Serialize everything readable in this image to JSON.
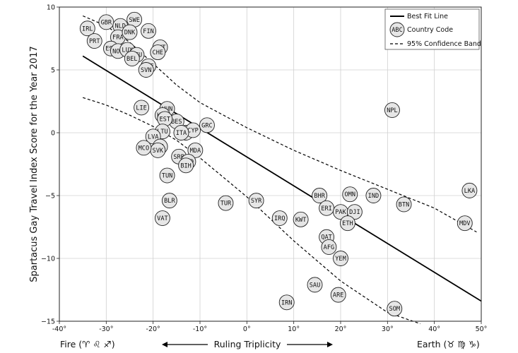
{
  "chart_data": {
    "type": "scatter",
    "ylabel": "Spartacus Gay Travel Index Score for the Year 2017",
    "xlim": [
      -40,
      50
    ],
    "ylim": [
      -15,
      10
    ],
    "x_ticks": [
      -40,
      -30,
      -20,
      -10,
      0,
      10,
      20,
      30,
      40,
      50
    ],
    "x_tick_labels": [
      "-40°",
      "-30°",
      "-20°",
      "-10°",
      "0°",
      "10°",
      "20°",
      "30°",
      "40°",
      "50°"
    ],
    "y_ticks": [
      -15,
      -10,
      -5,
      0,
      5,
      10
    ],
    "y_tick_labels": [
      "−15",
      "−10",
      "−5",
      "0",
      "5",
      "10"
    ],
    "grid": true,
    "legend": {
      "placement": "top-right",
      "entries": [
        {
          "kind": "line",
          "label": "Best Fit Line"
        },
        {
          "kind": "marker",
          "marker_text": "ABC",
          "label": "Country Code"
        },
        {
          "kind": "dashed",
          "label": "95% Confidence Band"
        }
      ]
    },
    "bottom_labels": {
      "left": "Fire (♈ ♌ ♐)",
      "center": "Ruling Triplicity",
      "right": "Earth (♉ ♍ ♑)"
    },
    "best_fit": {
      "x": [
        -35,
        50
      ],
      "y": [
        6.1,
        -13.4
      ]
    },
    "confidence_band": {
      "upper": [
        [
          -35,
          9.3
        ],
        [
          -30,
          8.5
        ],
        [
          -25,
          7.2
        ],
        [
          -20,
          5.5
        ],
        [
          -15,
          3.8
        ],
        [
          -10,
          2.4
        ],
        [
          0,
          0.4
        ],
        [
          10,
          -1.4
        ],
        [
          20,
          -3.0
        ],
        [
          30,
          -4.5
        ],
        [
          40,
          -6.0
        ],
        [
          49,
          -7.9
        ]
      ],
      "lower": [
        [
          -35,
          2.8
        ],
        [
          -30,
          2.2
        ],
        [
          -25,
          1.4
        ],
        [
          -20,
          0.5
        ],
        [
          -15,
          -0.6
        ],
        [
          -10,
          -2.0
        ],
        [
          0,
          -5.1
        ],
        [
          10,
          -8.6
        ],
        [
          20,
          -11.8
        ],
        [
          30,
          -14.3
        ],
        [
          37,
          -15.2
        ]
      ]
    },
    "points": [
      {
        "code": "IRL",
        "x": -34,
        "y": 8.3
      },
      {
        "code": "GBR",
        "x": -30,
        "y": 8.8
      },
      {
        "code": "NLD",
        "x": -27,
        "y": 8.5
      },
      {
        "code": "SWE",
        "x": -24,
        "y": 9.0
      },
      {
        "code": "PRT",
        "x": -32.5,
        "y": 7.3
      },
      {
        "code": "FRA",
        "x": -27.5,
        "y": 7.6
      },
      {
        "code": "DNK",
        "x": -25,
        "y": 8.0
      },
      {
        "code": "FIN",
        "x": -21,
        "y": 8.1
      },
      {
        "code": "ESP",
        "x": -29,
        "y": 6.7
      },
      {
        "code": "NOR",
        "x": -27.5,
        "y": 6.5
      },
      {
        "code": "LUX",
        "x": -25.5,
        "y": 6.6
      },
      {
        "code": "DEU",
        "x": -23.5,
        "y": 6.2
      },
      {
        "code": "BEL",
        "x": -24.5,
        "y": 5.9
      },
      {
        "code": "AUT",
        "x": -18.5,
        "y": 6.8
      },
      {
        "code": "CHE",
        "x": -19,
        "y": 6.4
      },
      {
        "code": "CZE",
        "x": -21,
        "y": 5.3
      },
      {
        "code": "SVN",
        "x": -21.5,
        "y": 5.0
      },
      {
        "code": "LIE",
        "x": -22.5,
        "y": 2.0
      },
      {
        "code": "HUN",
        "x": -17,
        "y": 1.9
      },
      {
        "code": "HRV",
        "x": -18,
        "y": 1.4
      },
      {
        "code": "BES",
        "x": -15,
        "y": 0.9
      },
      {
        "code": "EST",
        "x": -17.5,
        "y": 1.1
      },
      {
        "code": "GRC",
        "x": -8.5,
        "y": 0.6
      },
      {
        "code": "LTU",
        "x": -18,
        "y": 0.1
      },
      {
        "code": "ALB",
        "x": -13,
        "y": 0.0
      },
      {
        "code": "CYP",
        "x": -11.5,
        "y": 0.2
      },
      {
        "code": "ITA",
        "x": -14,
        "y": 0.0
      },
      {
        "code": "LVA",
        "x": -20,
        "y": -0.3
      },
      {
        "code": "POL",
        "x": -18.5,
        "y": -1.1
      },
      {
        "code": "SVK",
        "x": -19,
        "y": -1.4
      },
      {
        "code": "MCO",
        "x": -22,
        "y": -1.2
      },
      {
        "code": "MDA",
        "x": -11,
        "y": -1.4
      },
      {
        "code": "SRB",
        "x": -14.5,
        "y": -1.9
      },
      {
        "code": "MKD",
        "x": -12.5,
        "y": -2.3
      },
      {
        "code": "BIH",
        "x": -13,
        "y": -2.6
      },
      {
        "code": "TUN",
        "x": -17,
        "y": -3.4
      },
      {
        "code": "BLR",
        "x": -16.5,
        "y": -5.4
      },
      {
        "code": "VAT",
        "x": -18,
        "y": -6.8
      },
      {
        "code": "TUR",
        "x": -4.5,
        "y": -5.6
      },
      {
        "code": "SYR",
        "x": 2,
        "y": -5.4
      },
      {
        "code": "IRQ",
        "x": 7,
        "y": -6.8
      },
      {
        "code": "KWT",
        "x": 11.5,
        "y": -6.9
      },
      {
        "code": "BHR",
        "x": 15.5,
        "y": -5.0
      },
      {
        "code": "ERI",
        "x": 17,
        "y": -6.0
      },
      {
        "code": "OMN",
        "x": 22,
        "y": -4.9
      },
      {
        "code": "PAK",
        "x": 20,
        "y": -6.3
      },
      {
        "code": "DJI",
        "x": 23,
        "y": -6.3
      },
      {
        "code": "ETH",
        "x": 21.5,
        "y": -7.2
      },
      {
        "code": "IND",
        "x": 27,
        "y": -5.0
      },
      {
        "code": "BTN",
        "x": 33.5,
        "y": -5.7
      },
      {
        "code": "QAT",
        "x": 17,
        "y": -8.3
      },
      {
        "code": "AFG",
        "x": 17.5,
        "y": -9.1
      },
      {
        "code": "YEM",
        "x": 20,
        "y": -10.0
      },
      {
        "code": "SAU",
        "x": 14.5,
        "y": -12.1
      },
      {
        "code": "ARE",
        "x": 19.5,
        "y": -12.9
      },
      {
        "code": "IRN",
        "x": 8.5,
        "y": -13.5
      },
      {
        "code": "SOM",
        "x": 31.5,
        "y": -14.0
      },
      {
        "code": "NPL",
        "x": 31,
        "y": 1.8
      },
      {
        "code": "LKA",
        "x": 47.5,
        "y": -4.6
      },
      {
        "code": "MDV",
        "x": 46.5,
        "y": -7.2
      }
    ]
  }
}
